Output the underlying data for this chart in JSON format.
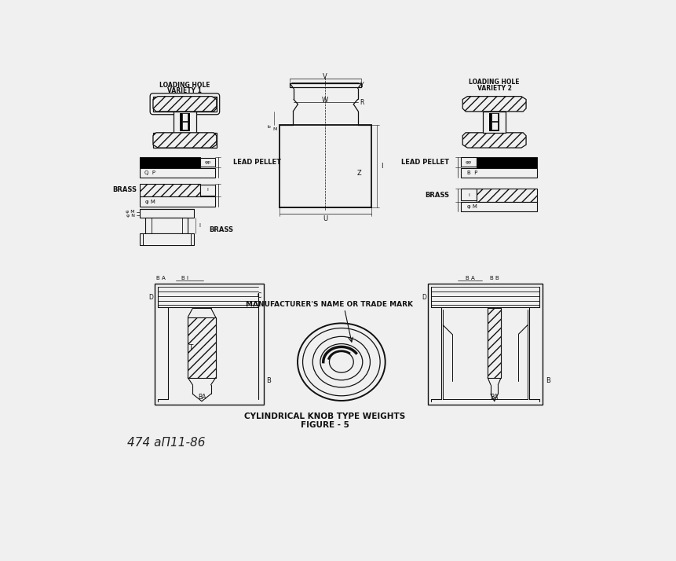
{
  "bg_color": "#f0f0f0",
  "line_color": "#111111",
  "title": "CYLINDRICAL KNOB TYPE WEIGHTS",
  "figure_label": "FIGURE - 5",
  "lh1_label": "LOADING HOLE\nVARIETY 1",
  "lh2_label": "LOADING HOLE\nVARIETY 2",
  "lead_pellet": "LEAD PELLET",
  "brass": "BRASS",
  "manufacturer": "MANUFACTURER'S NAME OR TRADE MARK",
  "fig_width": 8.62,
  "fig_height": 7.14,
  "dpi": 100
}
